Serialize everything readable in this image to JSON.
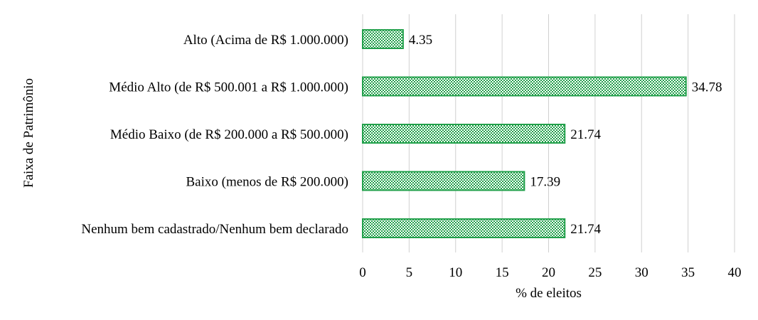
{
  "chart_data": {
    "type": "bar",
    "orientation": "horizontal",
    "title": "",
    "xlabel": "% de eleitos",
    "ylabel": "Faixa de Patrimônio",
    "categories": [
      "Alto (Acima de R$ 1.000.000)",
      "Médio Alto (de R$ 500.001 a R$ 1.000.000)",
      "Médio Baixo (de R$ 200.000 a R$ 500.000)",
      "Baixo (menos de R$ 200.000)",
      "Nenhum bem cadastrado/Nenhum bem declarado"
    ],
    "values": [
      4.35,
      34.78,
      21.74,
      17.39,
      21.74
    ],
    "data_labels": [
      "4.35",
      "34.78",
      "21.74",
      "17.39",
      "21.74"
    ],
    "xlim": [
      0,
      40
    ],
    "xticks": [
      0,
      5,
      10,
      15,
      20,
      25,
      30,
      35,
      40
    ],
    "grid": "vertical",
    "legend": "none",
    "bar_color": "#22a04b",
    "bar_pattern": "checkered"
  }
}
